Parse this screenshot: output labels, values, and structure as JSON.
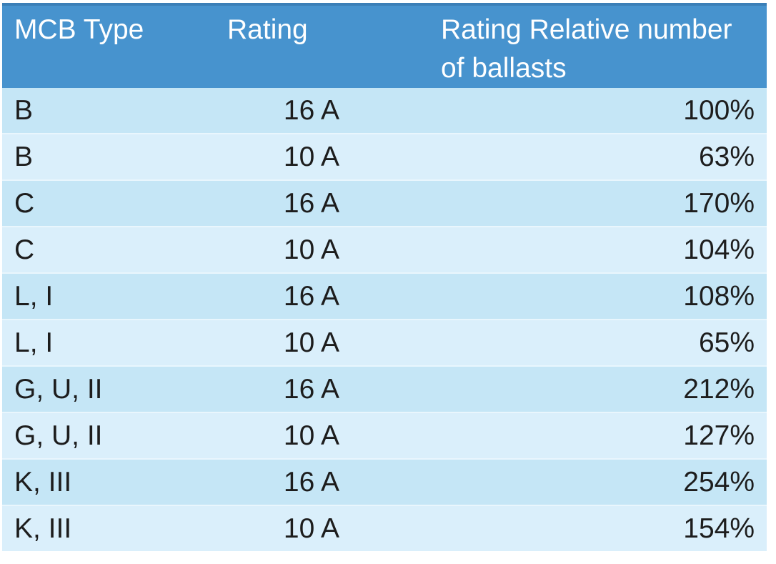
{
  "table": {
    "columns": [
      {
        "label": "MCB Type"
      },
      {
        "label": "Rating"
      },
      {
        "label": "Rating Relative number of ballasts"
      }
    ],
    "rows": [
      {
        "mcb_type": "B",
        "rating": "16 A",
        "relative_ballasts": "100%"
      },
      {
        "mcb_type": "B",
        "rating": "10 A",
        "relative_ballasts": "63%"
      },
      {
        "mcb_type": "C",
        "rating": "16 A",
        "relative_ballasts": "170%"
      },
      {
        "mcb_type": "C",
        "rating": "10 A",
        "relative_ballasts": "104%"
      },
      {
        "mcb_type": "L, I",
        "rating": "16 A",
        "relative_ballasts": "108%"
      },
      {
        "mcb_type": "L, I",
        "rating": "10 A",
        "relative_ballasts": "65%"
      },
      {
        "mcb_type": "G, U, II",
        "rating": "16 A",
        "relative_ballasts": "212%"
      },
      {
        "mcb_type": "G, U, II",
        "rating": "10 A",
        "relative_ballasts": "127%"
      },
      {
        "mcb_type": "K, III",
        "rating": "16 A",
        "relative_ballasts": "254%"
      },
      {
        "mcb_type": "K, III",
        "rating": "10 A",
        "relative_ballasts": "154%"
      }
    ]
  },
  "colors": {
    "header_bg": "#4793ce",
    "header_top_edge": "#3b7fb7",
    "header_text": "#ffffff",
    "row_dark": "#c5e6f6",
    "row_light": "#daeffb",
    "row_divider": "#e9f6fd",
    "body_text": "#1d1d1d",
    "page_bg": "#ffffff"
  }
}
